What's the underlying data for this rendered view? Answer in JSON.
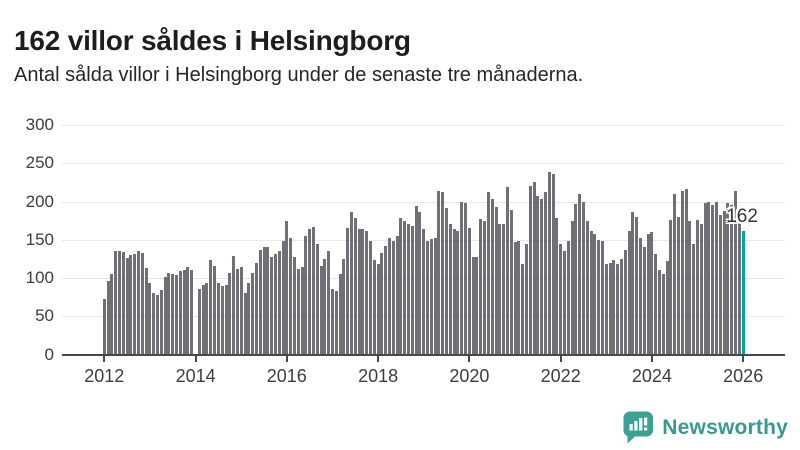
{
  "header": {
    "title": "162 villor såldes i Helsingborg",
    "subtitle": "Antal sålda villor i Helsingborg under de senaste tre månaderna."
  },
  "chart_data": {
    "type": "bar",
    "title": "162 villor såldes i Helsingborg",
    "subtitle": "Antal sålda villor i Helsingborg under de senaste tre månaderna.",
    "frequency": "monthly",
    "x_start": "2012-01",
    "x_end": "2026-01",
    "ylim": [
      0,
      300
    ],
    "grid": "horizontal",
    "y_ticks": [
      0,
      50,
      100,
      150,
      200,
      250,
      300
    ],
    "x_tick_labels": [
      "2012",
      "2014",
      "2016",
      "2018",
      "2020",
      "2022",
      "2024",
      "2026"
    ],
    "bar_color": "#6f6f75",
    "highlight_color": "#00a2a2",
    "highlight_index": 168,
    "highlight_label": "162",
    "values": [
      73,
      96,
      105,
      135,
      136,
      134,
      126,
      130,
      131,
      135,
      133,
      113,
      93,
      80,
      78,
      84,
      102,
      107,
      105,
      104,
      109,
      110,
      114,
      110,
      0,
      86,
      91,
      94,
      123,
      116,
      94,
      90,
      91,
      106,
      129,
      112,
      114,
      81,
      94,
      106,
      120,
      137,
      140,
      141,
      127,
      131,
      136,
      149,
      175,
      153,
      127,
      112,
      114,
      155,
      164,
      167,
      144,
      116,
      125,
      135,
      86,
      83,
      105,
      125,
      166,
      186,
      179,
      164,
      164,
      162,
      149,
      123,
      118,
      133,
      142,
      153,
      149,
      155,
      179,
      175,
      170,
      168,
      194,
      186,
      164,
      149,
      151,
      153,
      214,
      212,
      192,
      170,
      164,
      161,
      200,
      198,
      166,
      128,
      128,
      177,
      174,
      213,
      203,
      193,
      170,
      170,
      219,
      189,
      147,
      149,
      119,
      144,
      220,
      225,
      207,
      203,
      213,
      239,
      236,
      179,
      144,
      136,
      149,
      175,
      197,
      210,
      200,
      175,
      161,
      157,
      150,
      149,
      119,
      120,
      123,
      118,
      125,
      137,
      161,
      186,
      180,
      152,
      141,
      157,
      160,
      132,
      110,
      105,
      122,
      176,
      210,
      180,
      214,
      217,
      175,
      144,
      176,
      170,
      198,
      200,
      196,
      199,
      183,
      187,
      198,
      195,
      214,
      190,
      162
    ]
  },
  "annotation": {
    "label": "162"
  },
  "footer": {
    "brand": "Newsworthy",
    "brand_color": "#38998e",
    "logo_icon": "bar-chart-speech-bubble-icon",
    "logo_color": "#3aa294"
  }
}
